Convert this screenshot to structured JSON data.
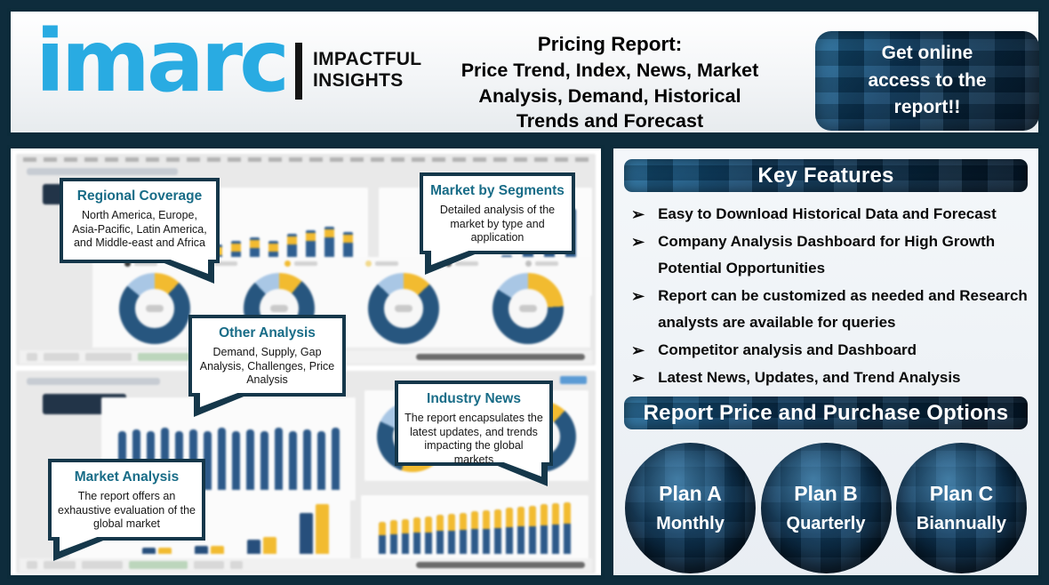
{
  "header": {
    "logo": {
      "brand": "imarc",
      "tagline_line1": "IMPACTFUL",
      "tagline_line2": "INSIGHTS"
    },
    "title_lines": [
      "Pricing Report:",
      "Price Trend, Index, News, Market",
      "Analysis, Demand, Historical",
      "Trends and Forecast"
    ],
    "cta_lines": [
      "Get online",
      "access to the",
      "report!!"
    ]
  },
  "left_panel": {
    "callouts": [
      {
        "title": "Regional Coverage",
        "body": "North America, Europe, Asia-Pacific, Latin America, and Middle-east and Africa"
      },
      {
        "title": "Market by Segments",
        "body": "Detailed analysis of the market by type and application"
      },
      {
        "title": "Other Analysis",
        "body": "Demand, Supply, Gap Analysis, Challenges, Price Analysis"
      },
      {
        "title": "Industry News",
        "body": "The report encapsulates the latest updates, and trends impacting the global markets"
      },
      {
        "title": "Market Analysis",
        "body": "The report offers an exhaustive evaluation of the global market"
      }
    ]
  },
  "right_panel": {
    "key_features_title": "Key Features",
    "features": [
      "Easy to Download Historical Data and Forecast",
      "Company Analysis Dashboard for High Growth Potential Opportunities",
      "Report can be customized as needed and Research analysts are available for queries",
      "Competitor analysis and Dashboard",
      "Latest News, Updates, and Trend Analysis"
    ],
    "purchase_title": "Report Price and Purchase Options",
    "plans": [
      {
        "name": "Plan A",
        "period": "Monthly"
      },
      {
        "name": "Plan B",
        "period": "Quarterly"
      },
      {
        "name": "Plan C",
        "period": "Biannually"
      }
    ]
  },
  "icons": {
    "bullet": "➢"
  },
  "colors": {
    "brand_blue": "#29abe2",
    "dark_navy_border": "#0c2b3a",
    "callout_title": "#186c87",
    "chart_navy": "#2d5a8a",
    "chart_yellow": "#f2bb30",
    "chart_lightblue": "#a9c7e5"
  },
  "dashboard_mock": {
    "top": {
      "stacked_heights": [
        46,
        50,
        54,
        50,
        58,
        62,
        66,
        60
      ],
      "grow_heights": [
        12,
        18,
        26,
        34,
        44,
        56,
        86
      ],
      "donut_slices": [
        [
          12,
          14
        ],
        [
          11,
          12
        ],
        [
          13,
          13
        ],
        [
          24,
          16
        ]
      ],
      "legend_colors": [
        "#3a3a3a",
        "#a9c7e5",
        "#f2bb30",
        "#f2d98a",
        "#555555",
        "#bfbfbf"
      ]
    },
    "bottom": {
      "tall_heights": [
        66,
        68,
        66,
        70,
        66,
        68,
        66,
        70,
        66,
        68,
        66,
        70,
        66,
        68,
        66,
        70
      ],
      "pair_heights": [
        [
          7,
          7
        ],
        [
          9,
          9
        ],
        [
          16,
          19
        ],
        [
          46,
          56
        ]
      ],
      "stacked2_heights": [
        36,
        38,
        39,
        41,
        42,
        44,
        45,
        46,
        48,
        49,
        50,
        52,
        53,
        54,
        56,
        57,
        58
      ],
      "donut_slices": [
        [
          55,
          18
        ],
        [
          12,
          12
        ]
      ]
    }
  }
}
